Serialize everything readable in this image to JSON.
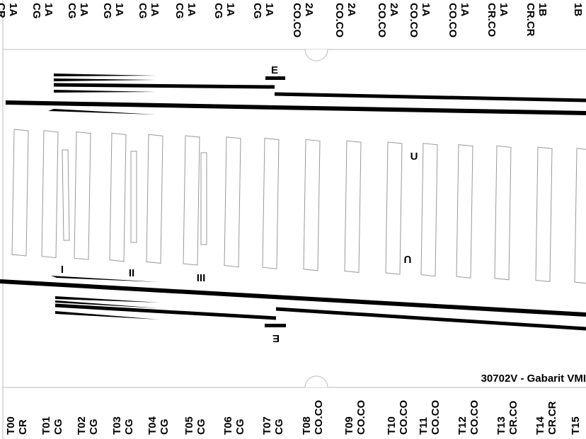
{
  "top_labels": [
    {
      "line1": "1A",
      "line2": "CR"
    },
    {
      "line1": "1A",
      "line2": "CG"
    },
    {
      "line1": "1A",
      "line2": "CG"
    },
    {
      "line1": "1A",
      "line2": "CG"
    },
    {
      "line1": "1A",
      "line2": "CG"
    },
    {
      "line1": "1A",
      "line2": "CG"
    },
    {
      "line1": "1A",
      "line2": "CG"
    },
    {
      "line1": "1A",
      "line2": "CG"
    },
    {
      "line1": "2A",
      "line2": "CO.CO"
    },
    {
      "line1": "2A",
      "line2": "CO.CO"
    },
    {
      "line1": "2A",
      "line2": "CO.CO"
    },
    {
      "line1": "1A",
      "line2": "CO.CO"
    },
    {
      "line1": "1A",
      "line2": "CO.CO"
    },
    {
      "line1": "1A",
      "line2": "CR.CO"
    },
    {
      "line1": "1B",
      "line2": "CR.CR"
    },
    {
      "line1": "1B"
    }
  ],
  "bottom_labels": [
    {
      "line1": "T00",
      "line2": "CR"
    },
    {
      "line1": "T01",
      "line2": "CG"
    },
    {
      "line1": "T02",
      "line2": "CG"
    },
    {
      "line1": "T03",
      "line2": "CG"
    },
    {
      "line1": "T04",
      "line2": "CG"
    },
    {
      "line1": "T05",
      "line2": "CG"
    },
    {
      "line1": "T06",
      "line2": "CG"
    },
    {
      "line1": "T07",
      "line2": "CG"
    },
    {
      "line1": "T08",
      "line2": "CO.CO"
    },
    {
      "line1": "T09",
      "line2": "CO.CO"
    },
    {
      "line1": "T10",
      "line2": "CO.CO"
    },
    {
      "line1": "T11",
      "line2": "CO.CO"
    },
    {
      "line1": "T12",
      "line2": "CO.CO"
    },
    {
      "line1": "T13",
      "line2": "CR.CO"
    },
    {
      "line1": "T14",
      "line2": "CR.CR"
    },
    {
      "line1": "T15"
    }
  ],
  "markers": {
    "top_e": "E",
    "bottom_e": "E",
    "u_top": "U",
    "u_bottom": "U",
    "track_1": "I",
    "track_2": "II",
    "track_3": "III"
  },
  "footer_title": "30702V - Gabarit VMI"
}
